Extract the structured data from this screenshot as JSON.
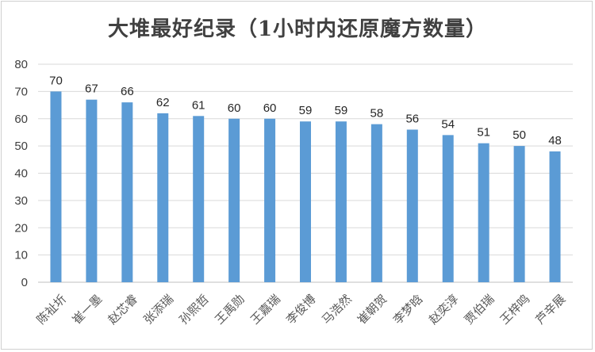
{
  "chart_data": {
    "type": "bar",
    "title": "大堆最好纪录（1小时内还原魔方数量）",
    "categories": [
      "陈祉圻",
      "崔一墨",
      "赵芯睿",
      "张添瑞",
      "孙熙哲",
      "王禹勋",
      "王嘉瑞",
      "李俊博",
      "马浩然",
      "崔朝贺",
      "李梦晗",
      "赵奕淳",
      "贾伯瑞",
      "王梓鸣",
      "芦辛展"
    ],
    "values": [
      70,
      67,
      66,
      62,
      61,
      60,
      60,
      59,
      59,
      58,
      56,
      54,
      51,
      50,
      48
    ],
    "xlabel": "",
    "ylabel": "",
    "ylim": [
      0,
      80
    ],
    "yticks": [
      0,
      10,
      20,
      30,
      40,
      50,
      60,
      70,
      80
    ],
    "grid": true,
    "legend": "none",
    "colors": {
      "bar": "#5b9bd5",
      "grid": "#d9d9d9",
      "axis": "#bfbfbf"
    }
  }
}
